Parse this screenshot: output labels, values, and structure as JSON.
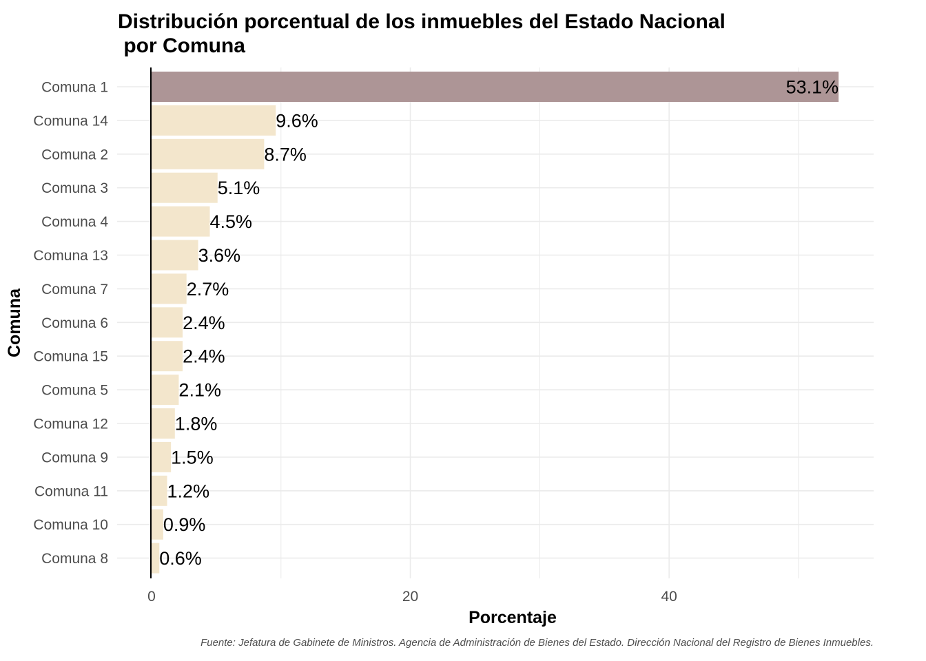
{
  "chart_data": {
    "type": "bar",
    "orientation": "horizontal",
    "title": "Distribución porcentual de los inmuebles del Estado Nacional\n por Comuna",
    "xlabel": "Porcentaje",
    "ylabel": "Comuna",
    "xlim": [
      0,
      55
    ],
    "xticks": [
      0,
      20,
      40
    ],
    "grid": true,
    "categories": [
      "Comuna 1",
      "Comuna 14",
      "Comuna 2",
      "Comuna 3",
      "Comuna 4",
      "Comuna 13",
      "Comuna 7",
      "Comuna 6",
      "Comuna 15",
      "Comuna 5",
      "Comuna 12",
      "Comuna 9",
      "Comuna 11",
      "Comuna 10",
      "Comuna 8"
    ],
    "values": [
      53.1,
      9.6,
      8.7,
      5.1,
      4.5,
      3.6,
      2.7,
      2.4,
      2.4,
      2.1,
      1.8,
      1.5,
      1.2,
      0.9,
      0.6
    ],
    "labels": [
      "53.1%",
      "9.6%",
      "8.7%",
      "5.1%",
      "4.5%",
      "3.6%",
      "2.7%",
      "2.4%",
      "2.4%",
      "2.1%",
      "1.8%",
      "1.5%",
      "1.2%",
      "0.9%",
      "0.6%"
    ],
    "colors": {
      "highlight": "#ad9596",
      "default": "#f3e6cc",
      "grid": "#ebebeb",
      "axis": "#000000",
      "tick_text": "#4d4d4d"
    },
    "source": "Fuente: Jefatura de Gabinete de Ministros. Agencia de Administración de Bienes del Estado. Dirección Nacional del Registro de Bienes Inmuebles."
  }
}
